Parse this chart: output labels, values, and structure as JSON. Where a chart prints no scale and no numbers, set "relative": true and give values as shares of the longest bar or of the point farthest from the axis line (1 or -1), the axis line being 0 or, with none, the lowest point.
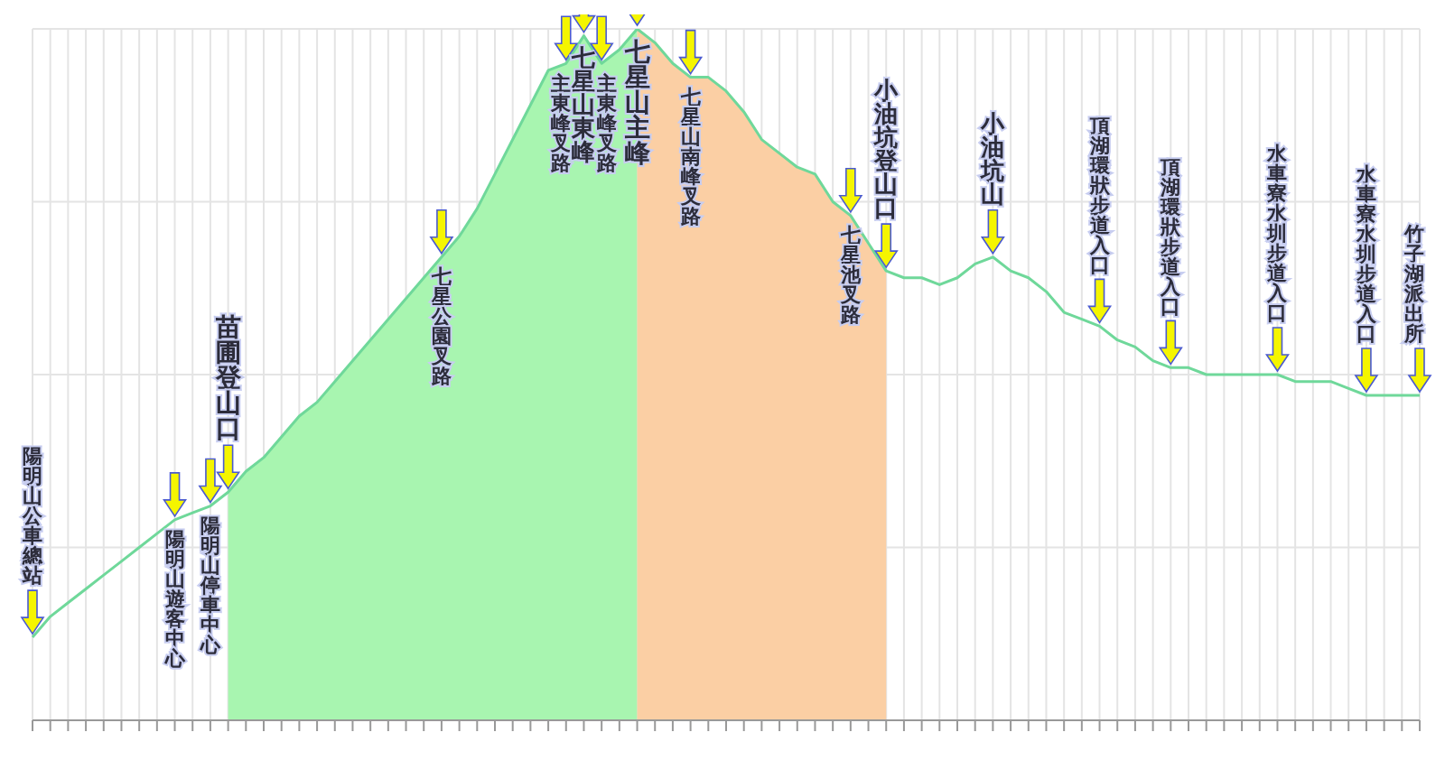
{
  "chart_data": {
    "type": "area",
    "relative": true,
    "grid": true,
    "categories": [
      null,
      null,
      null,
      null,
      null,
      null,
      null,
      null,
      null,
      null,
      null,
      null,
      null,
      null,
      null,
      null,
      null,
      null,
      null,
      null,
      null,
      null,
      null,
      null,
      null,
      null,
      null,
      null,
      null,
      null,
      null,
      null,
      null,
      null,
      null,
      null,
      null,
      null,
      null,
      null,
      null,
      null,
      null,
      null,
      null,
      null,
      null,
      null,
      null,
      null,
      null,
      null,
      null,
      null,
      null,
      null,
      null,
      null,
      null,
      null,
      null,
      null,
      null,
      null,
      null,
      null,
      null,
      null,
      null,
      null,
      null,
      null,
      null,
      null,
      null,
      null,
      null,
      null,
      null
    ],
    "series": [
      {
        "color": "#a8f5b0",
        "values": [
          null,
          null,
          null,
          null,
          null,
          null,
          null,
          null,
          null,
          null,
          null,
          0.33,
          0.36,
          0.38,
          0.41,
          0.44,
          0.46,
          0.49,
          0.52,
          0.55,
          0.58,
          0.61,
          0.64,
          0.67,
          0.7,
          0.74,
          0.79,
          0.84,
          0.89,
          0.94,
          0.95,
          0.99,
          0.95,
          0.97,
          1.0,
          null,
          null,
          null,
          null,
          null,
          null,
          null,
          null,
          null,
          null,
          null,
          null,
          null,
          null,
          null,
          null,
          null,
          null,
          null,
          null,
          null,
          null,
          null,
          null,
          null,
          null,
          null,
          null,
          null,
          null,
          null,
          null,
          null,
          null,
          null,
          null,
          null,
          null,
          null,
          null,
          null,
          null,
          null,
          null
        ]
      },
      {
        "color": "#fbcfa4",
        "values": [
          null,
          null,
          null,
          null,
          null,
          null,
          null,
          null,
          null,
          null,
          null,
          null,
          null,
          null,
          null,
          null,
          null,
          null,
          null,
          null,
          null,
          null,
          null,
          null,
          null,
          null,
          null,
          null,
          null,
          null,
          null,
          null,
          null,
          null,
          1.0,
          0.98,
          0.95,
          0.93,
          0.93,
          0.91,
          0.88,
          0.84,
          0.82,
          0.8,
          0.79,
          0.75,
          0.73,
          0.69,
          0.65,
          null,
          null,
          null,
          null,
          null,
          null,
          null,
          null,
          null,
          null,
          null,
          null,
          null,
          null,
          null,
          null,
          null,
          null,
          null,
          null,
          null,
          null,
          null,
          null,
          null,
          null,
          null,
          null,
          null,
          null
        ]
      },
      {
        "type": "line",
        "color": "#6fd89a",
        "values": [
          0.12,
          0.15,
          0.17,
          0.19,
          0.21,
          0.23,
          0.25,
          0.27,
          0.29,
          0.3,
          0.31,
          0.33,
          0.36,
          0.38,
          0.41,
          0.44,
          0.46,
          0.49,
          0.52,
          0.55,
          0.58,
          0.61,
          0.64,
          0.67,
          0.7,
          0.74,
          0.79,
          0.84,
          0.89,
          0.94,
          0.95,
          0.99,
          0.95,
          0.97,
          1.0,
          0.98,
          0.95,
          0.93,
          0.93,
          0.91,
          0.88,
          0.84,
          0.82,
          0.8,
          0.79,
          0.75,
          0.73,
          0.69,
          0.65,
          0.64,
          0.64,
          0.63,
          0.64,
          0.66,
          0.67,
          0.65,
          0.64,
          0.62,
          0.59,
          0.58,
          0.57,
          0.55,
          0.54,
          0.52,
          0.51,
          0.51,
          0.5,
          0.5,
          0.5,
          0.5,
          0.5,
          0.49,
          0.49,
          0.49,
          0.48,
          0.47,
          0.47,
          0.47,
          0.47
        ]
      }
    ],
    "annotations": [
      "陽明山公車總站",
      "陽明山遊客中心",
      "陽明山停車中心",
      "苗圃登山口",
      "七星公園叉路",
      "主東峰叉路",
      "七星山東峰",
      "主東峰叉路",
      "七星山主峰",
      "七星山南峰叉路",
      "七星池叉路",
      "小油坑登山口",
      "小油坑山",
      "頂湖環狀步道入口",
      "頂湖環狀步道入口",
      "水車寮水圳步道入口",
      "水車寮水圳步道入口",
      "竹子湖派出所"
    ]
  }
}
